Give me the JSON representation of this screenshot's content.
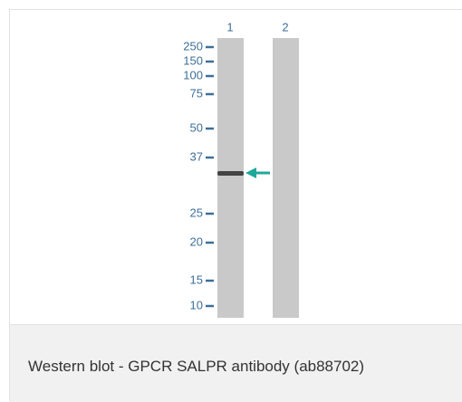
{
  "figure": {
    "lanes": [
      "1",
      "2"
    ],
    "markers": [
      "250",
      "150",
      "100",
      "75",
      "50",
      "37",
      "25",
      "20",
      "15",
      "10"
    ]
  },
  "caption": "Western blot - GPCR SALPR antibody (ab88702)"
}
